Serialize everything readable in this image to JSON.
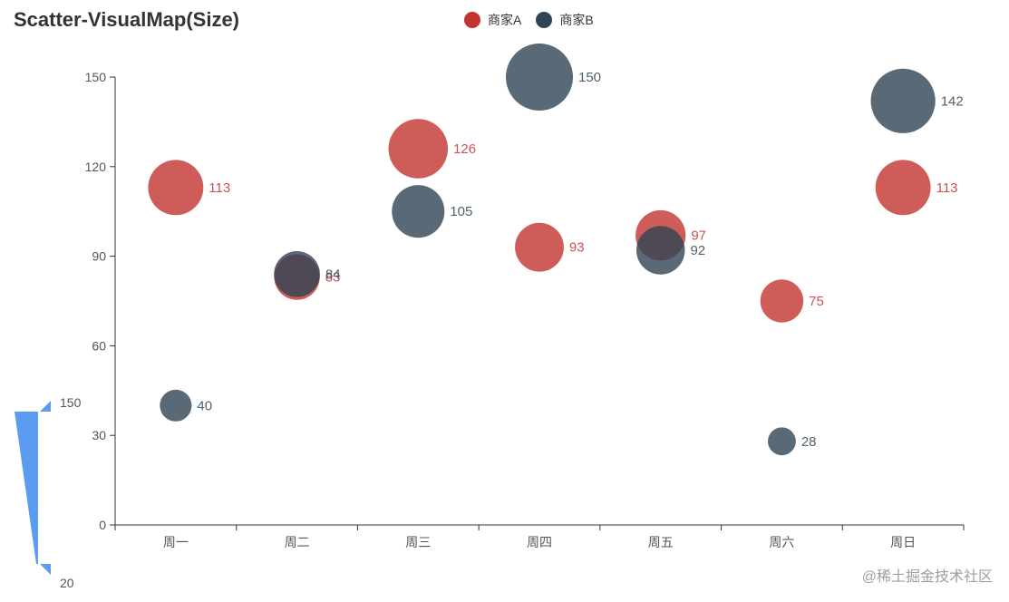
{
  "chart_data": {
    "type": "scatter",
    "title": "Scatter-VisualMap(Size)",
    "categories": [
      "周一",
      "周二",
      "周三",
      "周四",
      "周五",
      "周六",
      "周日"
    ],
    "ylim": [
      0,
      150
    ],
    "yticks": [
      0,
      30,
      60,
      90,
      120,
      150
    ],
    "series": [
      {
        "name": "商家A",
        "color": "#c23531",
        "values": [
          113,
          83,
          126,
          93,
          97,
          75,
          113
        ]
      },
      {
        "name": "商家B",
        "color": "#2f4554",
        "values": [
          40,
          84,
          105,
          150,
          92,
          28,
          142
        ]
      }
    ],
    "visual_map": {
      "dimension": "size",
      "min": 20,
      "max": 150,
      "min_label": "20",
      "max_label": "150",
      "color": "#5b9bf0"
    }
  },
  "legend": [
    {
      "name": "商家A",
      "color": "#c23531"
    },
    {
      "name": "商家B",
      "color": "#2f4554"
    }
  ],
  "watermark": "@稀土掘金技术社区"
}
